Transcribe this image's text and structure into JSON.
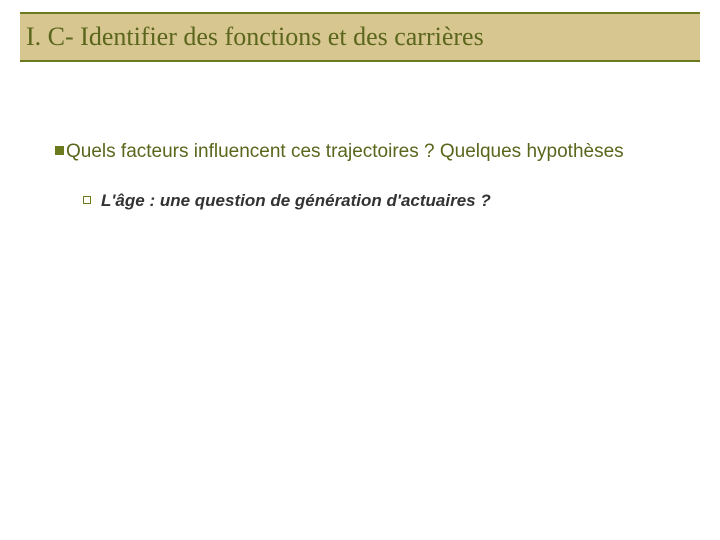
{
  "colors": {
    "title_bg": "#d8c690",
    "title_border": "#6b7a1f",
    "title_text": "#5a661c",
    "bullet1": "#6b7a1f",
    "bullet2": "#6b7a1f",
    "body_text": "#5a661c",
    "sub_text": "#333333"
  },
  "title": "I. C- Identifier des fonctions et des carrières",
  "bullets": {
    "level1": "Quels facteurs influencent ces trajectoires ? Quelques hypothèses",
    "level2": "L'âge : une question de génération d'actuaires ?"
  }
}
